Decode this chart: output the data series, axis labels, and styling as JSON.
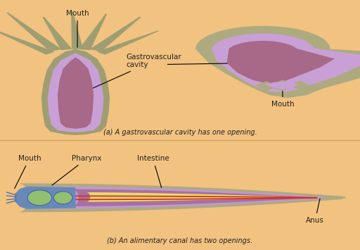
{
  "bg_color": "#F2C280",
  "panel_bg_a": "#F2C280",
  "panel_bg_b": "#F0C07A",
  "divider_color": "#D4A857",
  "hydra_colors": {
    "outer": "#9E9E72",
    "middle": "#C8A0D5",
    "inner": "#A86888"
  },
  "jellyfish_colors": {
    "outer": "#AEAA80",
    "middle": "#C8A0D5",
    "inner": "#A86888"
  },
  "nematode_colors": {
    "outer_body": "#AEAA80",
    "purple_layer": "#C098D0",
    "intestine_fill": "#A870A0",
    "yellow": "#E8D870",
    "red_line1": "#CC3820",
    "red_line2": "#CC3820",
    "green": "#90C070",
    "blue": "#6888B8",
    "blue_dark": "#4868A0"
  },
  "text_color": "#222222",
  "caption_a": "(a) A gastrovascular cavity has one opening.",
  "caption_b": "(b) An alimentary canal has two openings.",
  "label_mouth_hydra": "Mouth",
  "label_gastro": "Gastrovascular\ncavity",
  "label_mouth_jelly": "Mouth",
  "label_mouth_nem": "Mouth",
  "label_pharynx": "Pharynx",
  "label_intestine": "Intestine",
  "label_anus": "Anus"
}
